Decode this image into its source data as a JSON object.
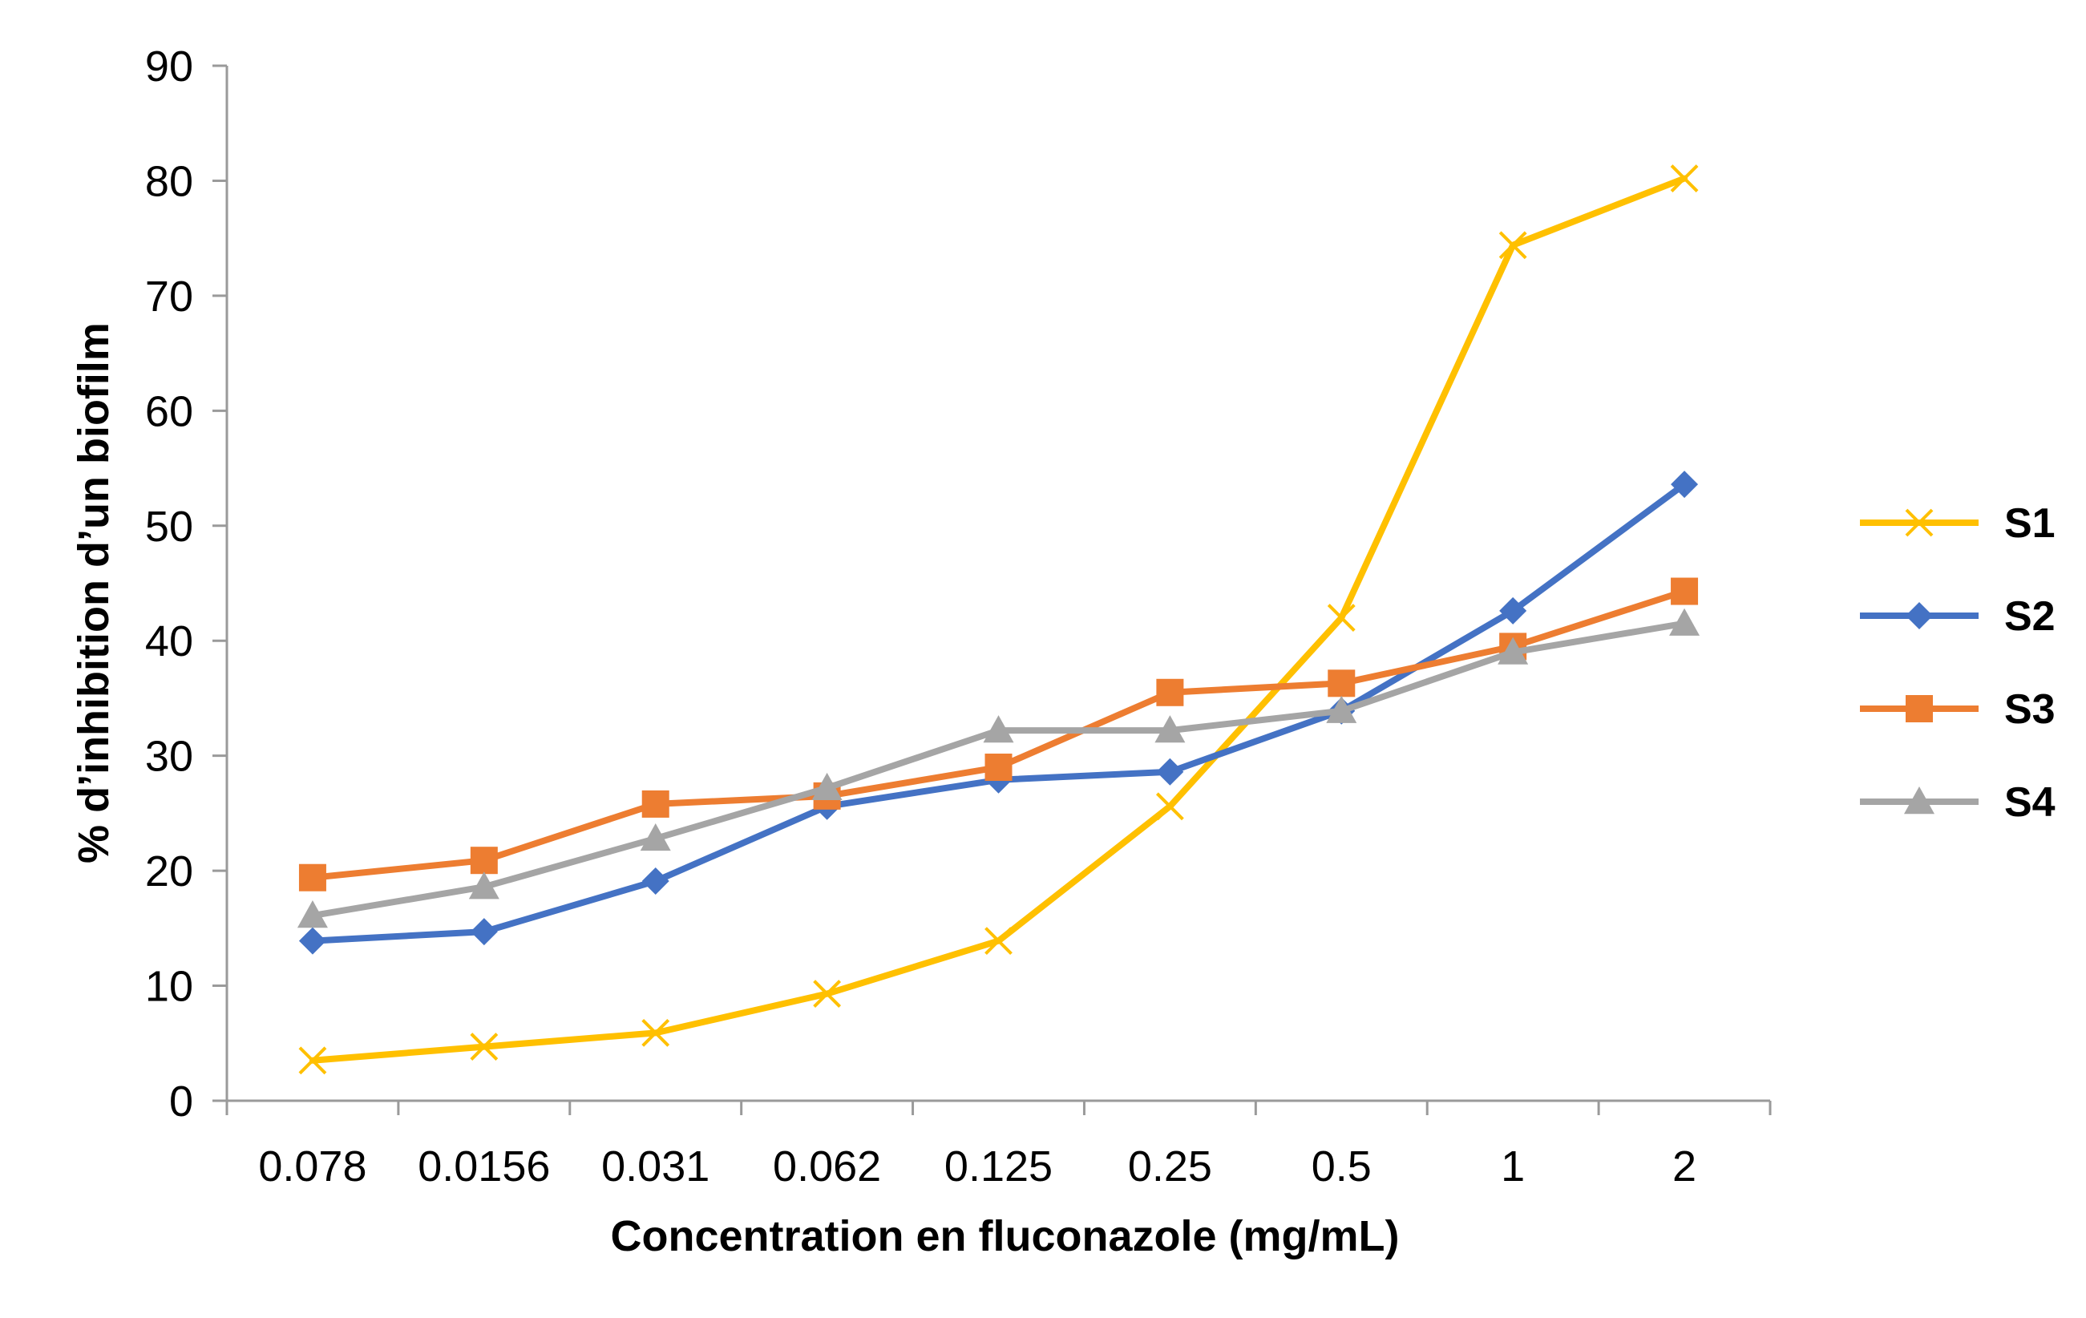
{
  "chart_data": {
    "type": "line",
    "title": "",
    "xlabel": "Concentration en fluconazole (mg/mL)",
    "ylabel": "% d’inhibition d’un biofilm",
    "categories": [
      "0.078",
      "0.0156",
      "0.031",
      "0.062",
      "0.125",
      "0.25",
      "0.5",
      "1",
      "2"
    ],
    "ylim": [
      0,
      90
    ],
    "yticks": [
      "0",
      "10",
      "20",
      "30",
      "40",
      "50",
      "60",
      "70",
      "80",
      "90"
    ],
    "grid": false,
    "legend_position": "right",
    "series": [
      {
        "name": "S1",
        "color": "#FFC000",
        "marker": "x",
        "values": [
          3.5,
          4.7,
          5.9,
          9.3,
          13.9,
          25.6,
          42.0,
          74.4,
          80.2
        ]
      },
      {
        "name": "S2",
        "color": "#4472C4",
        "marker": "diamond",
        "values": [
          13.9,
          14.7,
          19.1,
          25.6,
          27.9,
          28.6,
          33.9,
          42.6,
          53.6
        ]
      },
      {
        "name": "S3",
        "color": "#ED7D31",
        "marker": "square",
        "values": [
          19.4,
          20.9,
          25.8,
          26.5,
          29.0,
          35.5,
          36.3,
          39.5,
          44.3
        ]
      },
      {
        "name": "S4",
        "color": "#A5A5A5",
        "marker": "triangle",
        "values": [
          16.1,
          18.6,
          22.8,
          27.2,
          32.2,
          32.2,
          33.9,
          39.0,
          41.5
        ]
      }
    ]
  }
}
